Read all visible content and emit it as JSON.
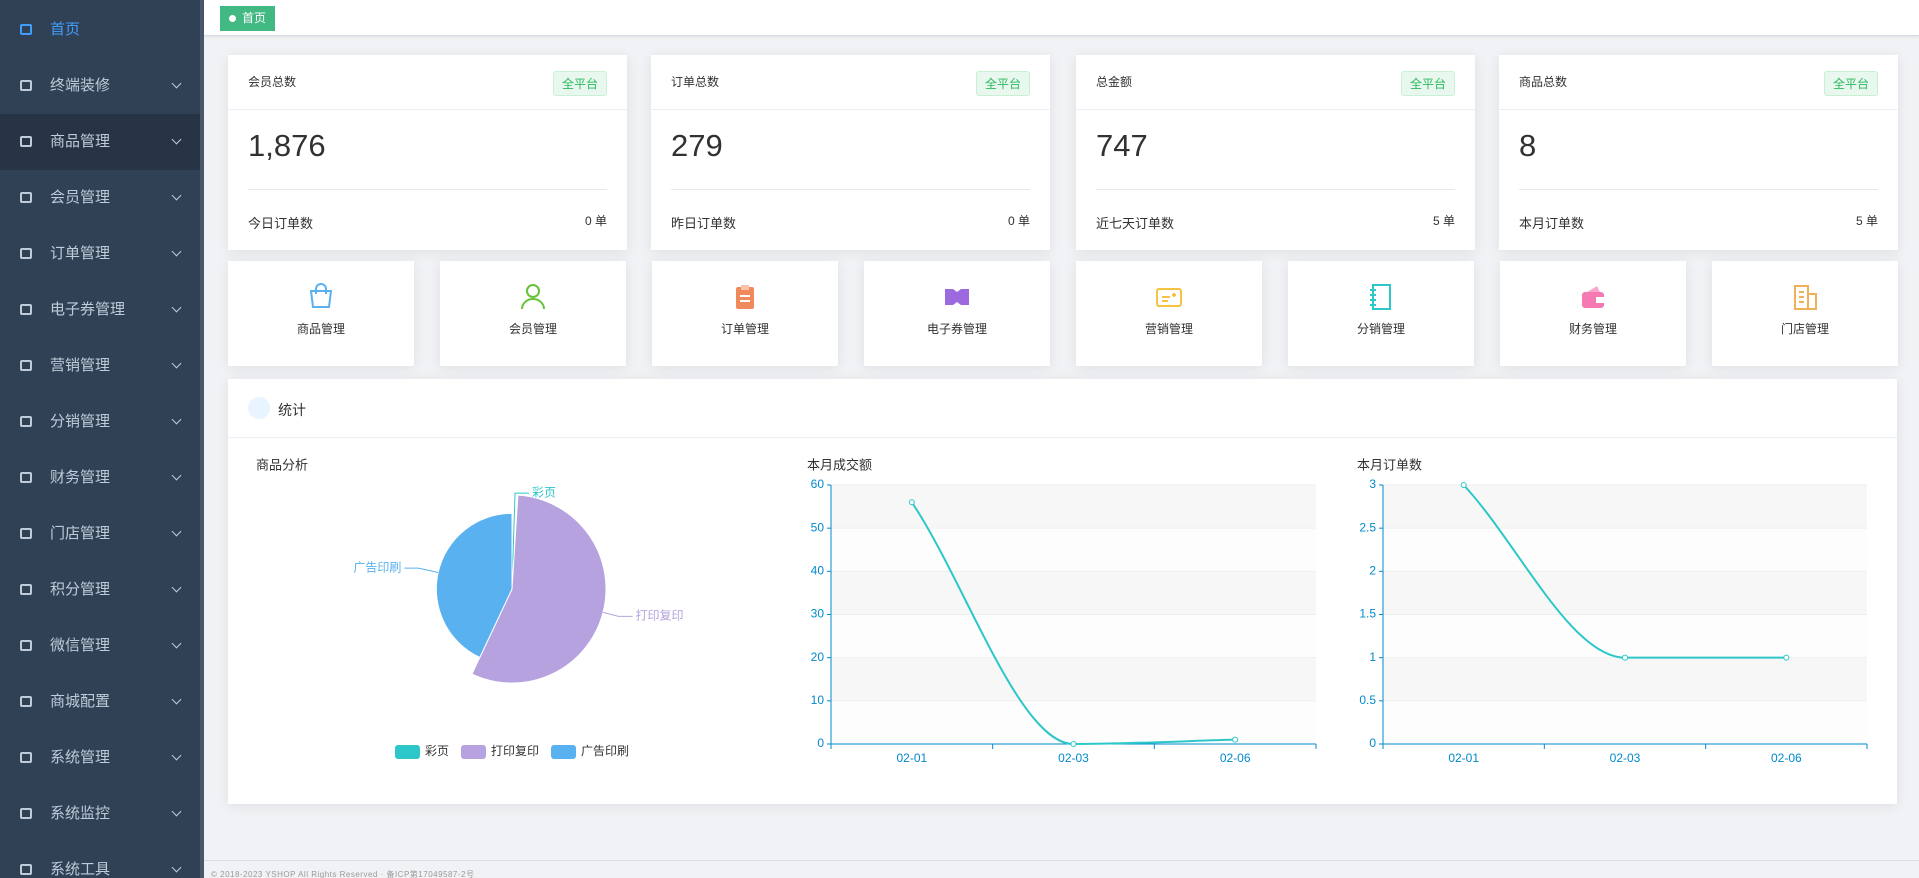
{
  "sidebar": {
    "items": [
      "首页",
      "终端装修",
      "商品管理",
      "会员管理",
      "订单管理",
      "电子券管理",
      "营销管理",
      "分销管理",
      "财务管理",
      "门店管理",
      "积分管理",
      "微信管理",
      "商城配置",
      "系统管理",
      "系统监控",
      "系统工具"
    ]
  },
  "breadcrumb": {
    "tag": "首页"
  },
  "stat_cards": [
    {
      "title": "会员总数",
      "badge": "全平台",
      "value": "1,876",
      "footer_label": "今日订单数",
      "footer_value": "0 单"
    },
    {
      "title": "订单总数",
      "badge": "全平台",
      "value": "279",
      "footer_label": "昨日订单数",
      "footer_value": "0 单"
    },
    {
      "title": "总金额",
      "badge": "全平台",
      "value": "747",
      "footer_label": "近七天订单数",
      "footer_value": "5 单"
    },
    {
      "title": "商品总数",
      "badge": "全平台",
      "value": "8",
      "footer_label": "本月订单数",
      "footer_value": "5 单"
    }
  ],
  "shortcuts": [
    "商品管理",
    "会员管理",
    "订单管理",
    "电子券管理",
    "营销管理",
    "分销管理",
    "财务管理",
    "门店管理"
  ],
  "stats_panel": {
    "title": "统计"
  },
  "chart_data": [
    {
      "type": "pie",
      "title": "商品分析",
      "categories": [
        "彩页",
        "打印复印",
        "广告印刷"
      ],
      "values": [
        1,
        56,
        43
      ],
      "colors": [
        "#2ec7c9",
        "#b6a2de",
        "#5ab1ef"
      ],
      "rose": true
    },
    {
      "type": "line",
      "title": "本月成交额",
      "categories": [
        "02-01",
        "02-03",
        "02-06"
      ],
      "values": [
        56,
        0,
        1
      ],
      "color": "#2ec7c9",
      "ylim": [
        0,
        60
      ],
      "yticks": [
        0,
        10,
        20,
        30,
        40,
        50,
        60
      ],
      "smooth": true,
      "split_area": true
    },
    {
      "type": "line",
      "title": "本月订单数",
      "categories": [
        "02-01",
        "02-03",
        "02-06"
      ],
      "values": [
        3,
        1,
        1
      ],
      "color": "#2ec7c9",
      "ylim": [
        0,
        3
      ],
      "yticks": [
        0,
        0.5,
        1,
        1.5,
        2,
        2.5,
        3
      ],
      "smooth": true,
      "split_area": true
    }
  ],
  "footer": {
    "text": "© 2018-2023 YSHOP All Rights Reserved · 备ICP第17049587-2号"
  }
}
